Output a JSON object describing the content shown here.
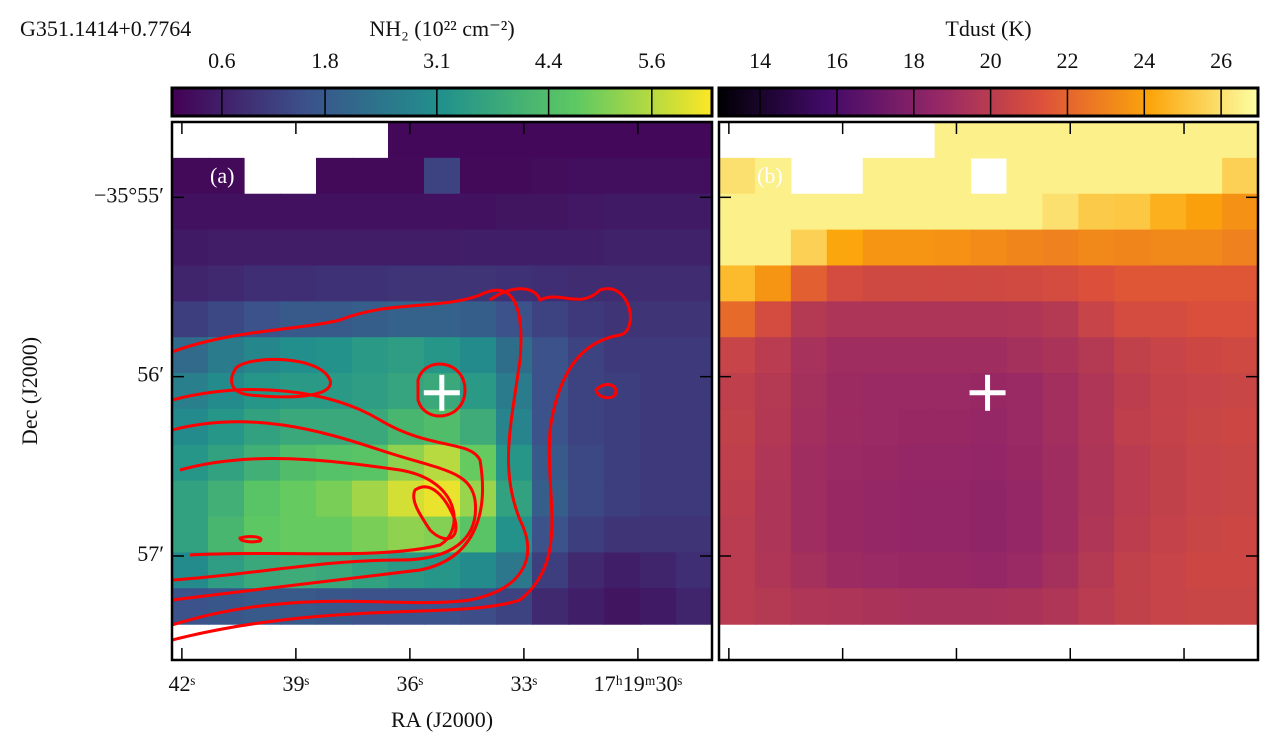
{
  "chart_data": [
    {
      "type": "heatmap",
      "title": "G351.1414+0.7764",
      "colorbar_label": "NH₂ (10²² cm⁻²)",
      "panel_label": "(a)",
      "colormap": "viridis",
      "clim": [
        0.02,
        6.3
      ],
      "cticks": [
        0.6,
        1.8,
        3.1,
        4.4,
        5.6
      ],
      "xlabel": "RA (J2000)",
      "ylabel": "Dec (J2000)",
      "xlim": [
        42.26,
        28.05
      ],
      "xticks": [
        {
          "value": 42,
          "label": "42ˢ"
        },
        {
          "value": 39,
          "label": "39ˢ"
        },
        {
          "value": 36,
          "label": "36ˢ"
        },
        {
          "value": 33,
          "label": "33ˢ"
        },
        {
          "value": 30,
          "label": "17ʰ19ᵐ30ˢ"
        }
      ],
      "ylim": [
        54.58,
        57.58
      ],
      "yticks": [
        {
          "value": 55,
          "label": "−35°55′"
        },
        {
          "value": 56,
          "label": "56′"
        },
        {
          "value": 57,
          "label": "57′"
        }
      ],
      "marker": {
        "x": 35.16,
        "y": 56.09
      },
      "grid": [
        [
          null,
          null,
          null,
          null,
          null,
          null,
          0.15,
          0.15,
          0.15,
          0.15,
          0.15,
          0.15,
          0.15,
          0.15,
          0.15
        ],
        [
          0.2,
          0.2,
          null,
          null,
          0.2,
          0.2,
          0.2,
          1.3,
          0.2,
          0.2,
          0.25,
          0.3,
          0.3,
          0.3,
          0.3
        ],
        [
          0.35,
          0.35,
          0.35,
          0.35,
          0.35,
          0.35,
          0.35,
          0.35,
          0.35,
          0.4,
          0.4,
          0.45,
          0.5,
          0.5,
          0.5
        ],
        [
          0.5,
          0.55,
          0.55,
          0.55,
          0.55,
          0.55,
          0.55,
          0.55,
          0.6,
          0.6,
          0.6,
          0.6,
          0.65,
          0.65,
          0.65
        ],
        [
          0.7,
          0.8,
          0.9,
          0.9,
          0.95,
          0.95,
          1.0,
          1.0,
          1.0,
          0.95,
          0.9,
          0.85,
          0.85,
          0.85,
          0.85
        ],
        [
          1.2,
          1.4,
          1.6,
          1.8,
          1.8,
          1.9,
          2.0,
          2.0,
          1.9,
          1.6,
          1.3,
          1.1,
          1.0,
          1.0,
          1.0
        ],
        [
          2.2,
          2.6,
          2.9,
          3.1,
          3.2,
          3.4,
          3.5,
          3.3,
          3.0,
          2.3,
          1.6,
          1.3,
          1.1,
          1.1,
          1.1
        ],
        [
          2.7,
          3.0,
          3.3,
          3.4,
          3.4,
          3.5,
          3.7,
          3.8,
          3.4,
          2.6,
          1.6,
          1.3,
          1.2,
          1.1,
          1.1
        ],
        [
          3.0,
          3.3,
          3.6,
          3.8,
          3.8,
          3.8,
          4.2,
          4.4,
          3.9,
          2.8,
          1.6,
          1.3,
          1.2,
          1.1,
          1.1
        ],
        [
          3.3,
          3.6,
          4.0,
          4.4,
          4.5,
          4.6,
          5.2,
          5.6,
          4.8,
          3.3,
          1.8,
          1.4,
          1.2,
          1.1,
          1.1
        ],
        [
          3.6,
          4.0,
          4.6,
          4.8,
          5.0,
          5.4,
          5.9,
          6.1,
          5.3,
          3.6,
          1.9,
          1.4,
          1.2,
          1.1,
          1.1
        ],
        [
          3.6,
          4.2,
          4.7,
          4.8,
          4.8,
          5.0,
          5.2,
          5.1,
          4.6,
          3.2,
          1.6,
          1.2,
          1.0,
          1.0,
          1.0
        ],
        [
          3.0,
          3.5,
          3.8,
          3.9,
          3.8,
          3.6,
          3.4,
          3.3,
          3.0,
          2.5,
          1.2,
          0.8,
          0.6,
          0.7,
          0.9
        ],
        [
          1.6,
          1.7,
          1.8,
          1.8,
          1.7,
          1.6,
          1.6,
          1.6,
          1.5,
          1.3,
          0.8,
          0.6,
          0.4,
          0.5,
          0.7
        ],
        [
          null,
          null,
          null,
          null,
          null,
          null,
          null,
          null,
          null,
          null,
          null,
          null,
          null,
          null,
          null
        ]
      ]
    },
    {
      "type": "heatmap",
      "colorbar_label": "Tdust (K)",
      "panel_label": "(b)",
      "colormap": "inferno",
      "clim": [
        12.93,
        26.96
      ],
      "cticks": [
        14,
        16,
        18,
        20,
        22,
        24,
        26
      ],
      "marker": {
        "x": 35.18,
        "y": 56.09
      },
      "grid": [
        [
          null,
          null,
          null,
          null,
          null,
          null,
          26.5,
          26.5,
          26.5,
          26.5,
          26.5,
          26.5,
          26.5,
          26.5,
          26.5
        ],
        [
          26,
          26.5,
          null,
          null,
          26.5,
          26.5,
          26.5,
          null,
          26.5,
          26.5,
          26.5,
          26.5,
          26.5,
          26.5,
          25.5
        ],
        [
          26.5,
          26.5,
          26.5,
          26.5,
          26.5,
          26.5,
          26.5,
          26.5,
          26.5,
          26,
          25.3,
          25.2,
          24.5,
          24,
          23.5
        ],
        [
          26.5,
          26.5,
          25.5,
          24.2,
          23.6,
          23.6,
          23.5,
          23.3,
          23.1,
          23.0,
          23.2,
          23.1,
          23.2,
          23.2,
          23.0
        ],
        [
          24.8,
          23.6,
          21.8,
          21.0,
          20.8,
          20.8,
          20.8,
          20.8,
          20.9,
          21.0,
          21.3,
          21.5,
          21.5,
          21.5,
          21.5
        ],
        [
          22.2,
          21.0,
          19.8,
          19.5,
          19.5,
          19.5,
          19.5,
          19.5,
          19.6,
          19.8,
          20.5,
          21.0,
          21.0,
          21.2,
          21.2
        ],
        [
          20.5,
          20.0,
          19.3,
          19.0,
          19.0,
          19.0,
          19.0,
          19.0,
          19.2,
          19.4,
          19.8,
          20.3,
          20.5,
          20.7,
          20.8
        ],
        [
          20.2,
          19.8,
          19.2,
          18.9,
          18.8,
          18.8,
          18.8,
          18.7,
          18.8,
          19.1,
          19.6,
          20.1,
          20.4,
          20.5,
          20.6
        ],
        [
          20.3,
          19.7,
          19.1,
          18.9,
          18.8,
          18.7,
          18.7,
          18.6,
          18.8,
          19.1,
          19.6,
          20.2,
          20.4,
          20.6,
          20.7
        ],
        [
          20.2,
          19.6,
          19.0,
          18.8,
          18.7,
          18.6,
          18.6,
          18.5,
          18.7,
          19.0,
          19.5,
          20.0,
          20.3,
          20.5,
          20.6
        ],
        [
          20.1,
          19.5,
          19.0,
          18.7,
          18.6,
          18.5,
          18.5,
          18.4,
          18.6,
          19.0,
          19.5,
          20.0,
          20.3,
          20.5,
          20.6
        ],
        [
          20.0,
          19.5,
          19.0,
          18.7,
          18.6,
          18.5,
          18.5,
          18.4,
          18.6,
          19.0,
          19.6,
          20.1,
          20.4,
          20.6,
          20.7
        ],
        [
          20.0,
          19.6,
          19.2,
          18.9,
          18.8,
          18.7,
          18.7,
          18.6,
          18.8,
          19.2,
          19.8,
          20.3,
          20.5,
          20.7,
          20.7
        ],
        [
          20.0,
          19.8,
          19.6,
          19.5,
          19.4,
          19.3,
          19.3,
          19.3,
          19.4,
          19.6,
          20.0,
          20.3,
          20.5,
          20.6,
          20.6
        ],
        [
          null,
          null,
          null,
          null,
          null,
          null,
          null,
          null,
          null,
          null,
          null,
          null,
          null,
          null,
          null
        ]
      ]
    }
  ]
}
